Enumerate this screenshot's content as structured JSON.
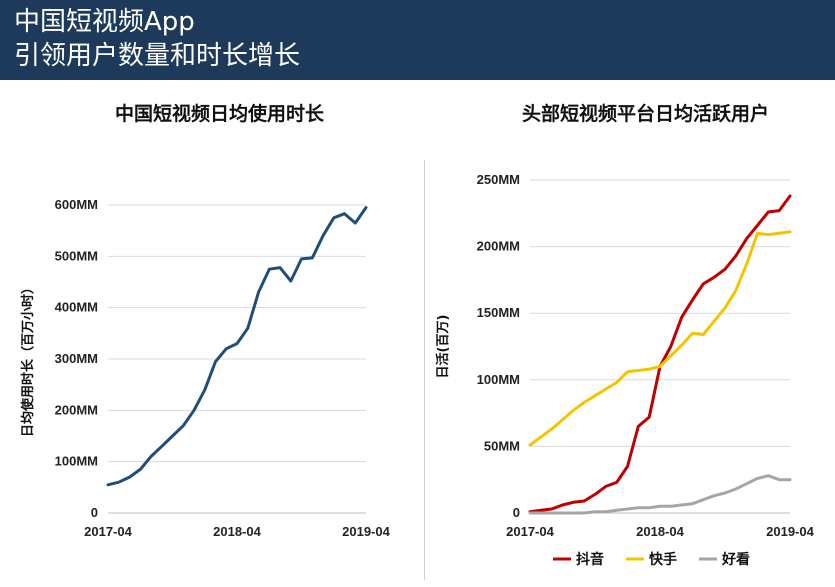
{
  "header": {
    "line1": "中国短视频App",
    "line2": "引领用户数量和时长增长"
  },
  "colors": {
    "header_bg": "#1e3a5a",
    "left_line": "#1f4e79",
    "douyin": "#c00000",
    "kuaishou": "#f5c400",
    "haokan": "#a6a6a6",
    "grid": "#d9d9d9"
  },
  "chart_data": [
    {
      "type": "line",
      "title": "中国短视频日均使用时长",
      "ylabel": "日均使用时长（百万小时）",
      "xlabel": "",
      "ylim": [
        0,
        600
      ],
      "y_ticks": [
        0,
        100,
        200,
        300,
        400,
        500,
        600
      ],
      "y_tick_labels": [
        "0",
        "100MM",
        "200MM",
        "300MM",
        "400MM",
        "500MM",
        "600MM"
      ],
      "x_tick_labels": [
        "2017-04",
        "2018-04",
        "2019-04"
      ],
      "grid": "horizontal",
      "series": [
        {
          "values": [
            55,
            60,
            70,
            85,
            110,
            130,
            150,
            170,
            200,
            240,
            295,
            320,
            330,
            360,
            430,
            475,
            478,
            452,
            495,
            497,
            540,
            575,
            583,
            565,
            595
          ]
        }
      ]
    },
    {
      "type": "line",
      "title": "头部短视频平台日均活跃用户",
      "ylabel": "日活(百万)",
      "xlabel": "",
      "ylim": [
        0,
        250
      ],
      "y_ticks": [
        0,
        50,
        100,
        150,
        200,
        250
      ],
      "y_tick_labels": [
        "0",
        "50MM",
        "100MM",
        "150MM",
        "200MM",
        "250MM"
      ],
      "x_tick_labels": [
        "2017-04",
        "2018-04",
        "2019-04"
      ],
      "grid": "horizontal",
      "legend": "bottom",
      "series": [
        {
          "name": "抖音",
          "values": [
            1,
            2,
            3,
            6,
            8,
            9,
            14,
            20,
            23,
            35,
            65,
            72,
            110,
            125,
            147,
            160,
            172,
            177,
            183,
            193,
            206,
            216,
            226,
            227,
            238
          ]
        },
        {
          "name": "快手",
          "values": [
            51,
            57,
            63,
            70,
            77,
            83,
            88,
            93,
            98,
            106,
            107,
            108,
            110,
            118,
            126,
            135,
            134,
            144,
            154,
            167,
            187,
            210,
            209,
            210,
            211
          ]
        },
        {
          "name": "好看",
          "values": [
            0,
            0,
            0,
            0,
            0,
            0,
            1,
            1,
            2,
            3,
            4,
            4,
            5,
            5,
            6,
            7,
            10,
            13,
            15,
            18,
            22,
            26,
            28,
            25,
            25
          ]
        }
      ]
    }
  ]
}
